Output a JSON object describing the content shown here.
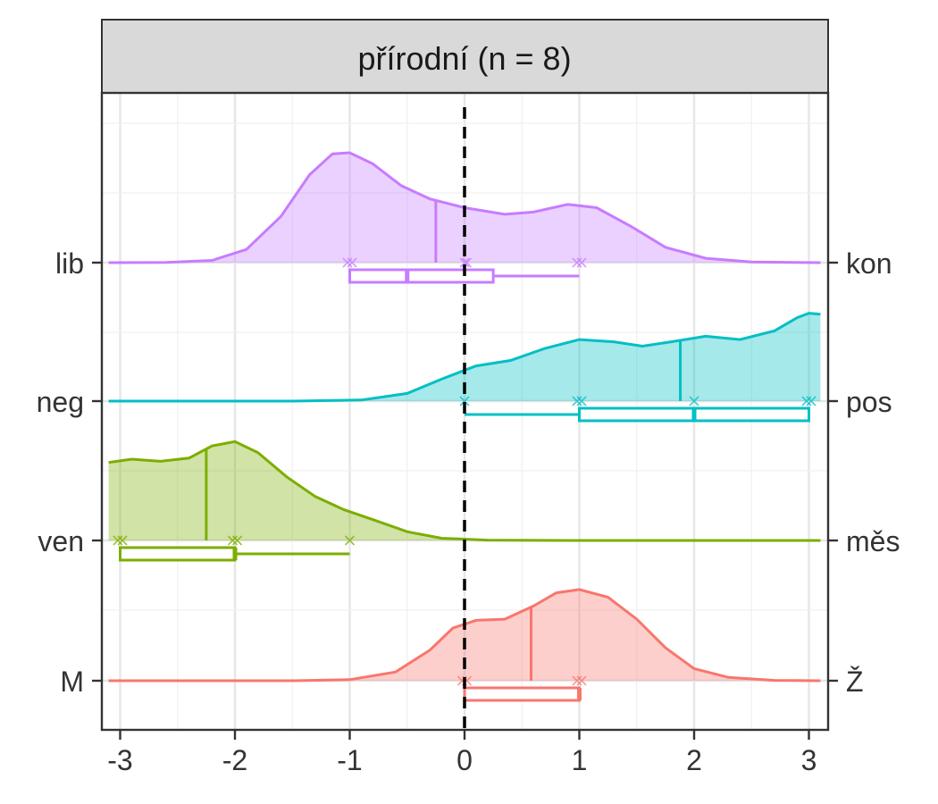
{
  "chart_data": {
    "type": "ridgeline-density",
    "title": "",
    "panel_title": "přírodní (n = 8)",
    "xlabel": "",
    "ylabel": "",
    "xlim": [
      -3.1,
      3.1
    ],
    "x_ticks": [
      "-3",
      "-2",
      "-1",
      "0",
      "1",
      "2",
      "3"
    ],
    "reference_line_x": 0,
    "grid": true,
    "rows": [
      {
        "left_label": "lib",
        "right_label": "kon",
        "color": "#C77CFF",
        "points": [
          -1.02,
          -0.98,
          0.0,
          0.02,
          0.98,
          1.02
        ],
        "mean": -0.25,
        "box": {
          "min": -1.0,
          "q1": -1.0,
          "median": -0.5,
          "q3": 0.25,
          "max": 1.0
        },
        "density": [
          [
            -3.1,
            0
          ],
          [
            -2.6,
            0.002
          ],
          [
            -2.2,
            0.02
          ],
          [
            -1.9,
            0.12
          ],
          [
            -1.6,
            0.42
          ],
          [
            -1.35,
            0.8
          ],
          [
            -1.15,
            0.99
          ],
          [
            -1.0,
            1.0
          ],
          [
            -0.8,
            0.9
          ],
          [
            -0.55,
            0.7
          ],
          [
            -0.3,
            0.58
          ],
          [
            0.0,
            0.5
          ],
          [
            0.35,
            0.44
          ],
          [
            0.6,
            0.46
          ],
          [
            0.9,
            0.53
          ],
          [
            1.15,
            0.5
          ],
          [
            1.45,
            0.33
          ],
          [
            1.75,
            0.14
          ],
          [
            2.1,
            0.04
          ],
          [
            2.5,
            0.006
          ],
          [
            3.1,
            0
          ]
        ]
      },
      {
        "left_label": "neg",
        "right_label": "pos",
        "color": "#00BFC4",
        "points": [
          0.0,
          0.98,
          1.02,
          2.0,
          2.98,
          3.02
        ],
        "mean": 1.88,
        "box": {
          "min": 0.0,
          "q1": 1.0,
          "median": 2.0,
          "q3": 3.0,
          "max": 3.0
        },
        "density": [
          [
            -3.1,
            0
          ],
          [
            -1.5,
            0
          ],
          [
            -0.9,
            0.01
          ],
          [
            -0.5,
            0.07
          ],
          [
            -0.2,
            0.2
          ],
          [
            0.1,
            0.32
          ],
          [
            0.4,
            0.37
          ],
          [
            0.7,
            0.48
          ],
          [
            1.0,
            0.56
          ],
          [
            1.3,
            0.54
          ],
          [
            1.55,
            0.5
          ],
          [
            1.8,
            0.54
          ],
          [
            2.1,
            0.59
          ],
          [
            2.4,
            0.56
          ],
          [
            2.7,
            0.64
          ],
          [
            2.9,
            0.76
          ],
          [
            3.0,
            0.8
          ],
          [
            3.1,
            0.79
          ]
        ]
      },
      {
        "left_label": "ven",
        "right_label": "měs",
        "color": "#7CAE00",
        "points": [
          -3.02,
          -2.98,
          -2.02,
          -1.98,
          -1.0
        ],
        "mean": -2.25,
        "box": {
          "min": -3.0,
          "q1": -3.0,
          "median": -2.0,
          "q3": -2.0,
          "max": -1.0
        },
        "density": [
          [
            -3.1,
            0.71
          ],
          [
            -2.9,
            0.74
          ],
          [
            -2.65,
            0.72
          ],
          [
            -2.4,
            0.75
          ],
          [
            -2.2,
            0.86
          ],
          [
            -2.0,
            0.9
          ],
          [
            -1.8,
            0.8
          ],
          [
            -1.55,
            0.58
          ],
          [
            -1.3,
            0.4
          ],
          [
            -1.05,
            0.28
          ],
          [
            -0.8,
            0.19
          ],
          [
            -0.5,
            0.08
          ],
          [
            -0.2,
            0.02
          ],
          [
            0.2,
            0.003
          ],
          [
            1.0,
            0
          ],
          [
            3.1,
            0
          ]
        ]
      },
      {
        "left_label": "M",
        "right_label": "Ž",
        "color": "#F8766D",
        "points": [
          -0.02,
          0.02,
          0.98,
          1.02
        ],
        "mean": 0.58,
        "box": {
          "min": 0.0,
          "q1": 0.0,
          "median": 1.0,
          "q3": 1.0,
          "max": 1.0
        },
        "density": [
          [
            -3.1,
            0
          ],
          [
            -1.5,
            0
          ],
          [
            -1.0,
            0.01
          ],
          [
            -0.6,
            0.08
          ],
          [
            -0.3,
            0.28
          ],
          [
            -0.1,
            0.48
          ],
          [
            0.1,
            0.55
          ],
          [
            0.35,
            0.56
          ],
          [
            0.6,
            0.68
          ],
          [
            0.8,
            0.8
          ],
          [
            1.0,
            0.83
          ],
          [
            1.25,
            0.76
          ],
          [
            1.5,
            0.56
          ],
          [
            1.75,
            0.3
          ],
          [
            2.0,
            0.11
          ],
          [
            2.3,
            0.03
          ],
          [
            2.7,
            0.003
          ],
          [
            3.1,
            0
          ]
        ]
      }
    ]
  }
}
